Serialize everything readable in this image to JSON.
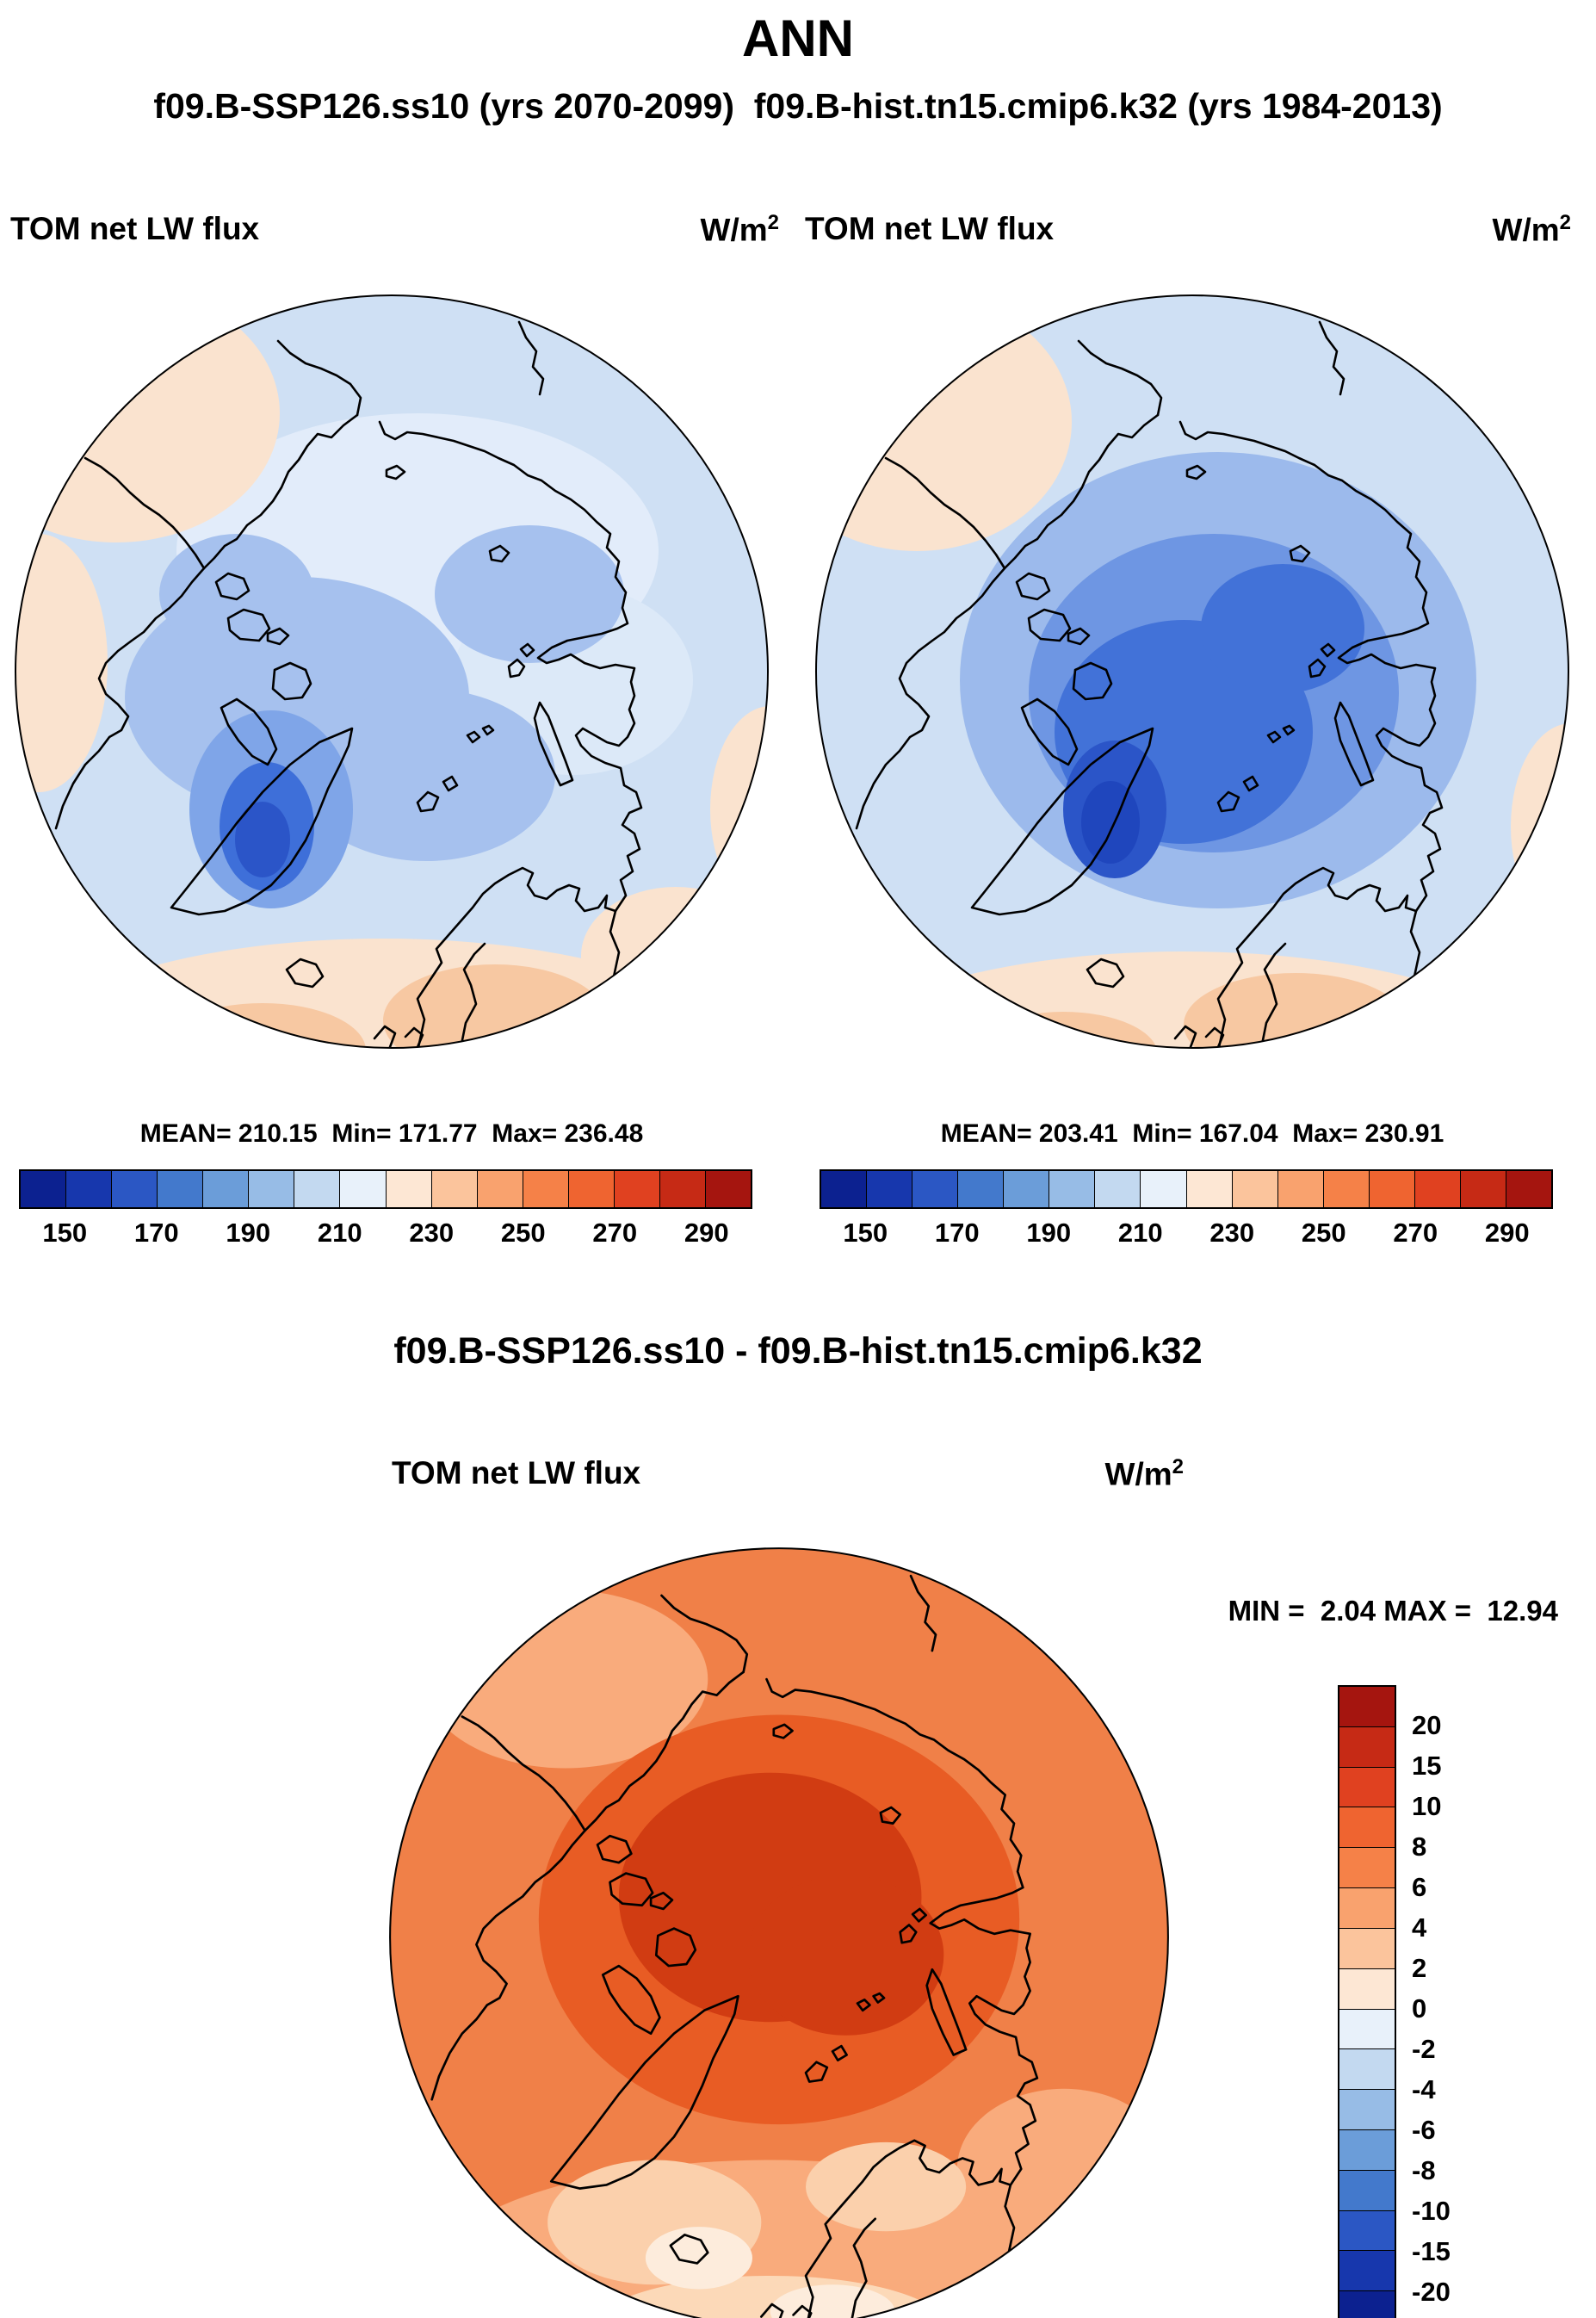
{
  "title": "ANN",
  "subtitle": "f09.B-SSP126.ss10 (yrs 2070-2099)  f09.B-hist.tn15.cmip6.k32 (yrs 1984-2013)",
  "diff_title": "f09.B-SSP126.ss10 - f09.B-hist.tn15.cmip6.k32",
  "panels": {
    "left": {
      "field_label": "TOM net LW flux",
      "units_base": "W/m",
      "units_exp": "2",
      "stats": "MEAN= 210.15  Min= 171.77  Max= 236.48"
    },
    "right": {
      "field_label": "TOM net LW flux",
      "units_base": "W/m",
      "units_exp": "2",
      "stats": "MEAN= 203.41  Min= 167.04  Max= 230.91"
    },
    "diff": {
      "field_label": "TOM net LW flux",
      "units_base": "W/m",
      "units_exp": "2",
      "stats": "MIN =  2.04 MAX =  12.94"
    }
  },
  "colorbar_horizontal": {
    "colors": [
      "#0c2190",
      "#1737ad",
      "#2b57c4",
      "#4379cc",
      "#6b9dd9",
      "#97bce6",
      "#c3d9f0",
      "#e8f1fa",
      "#fde7d4",
      "#fbc49c",
      "#f9a26e",
      "#f58148",
      "#ef6430",
      "#e04120",
      "#c62a15",
      "#a5150f"
    ],
    "tick_labels": [
      "150",
      "170",
      "190",
      "210",
      "230",
      "250",
      "270",
      "290"
    ]
  },
  "colorbar_vertical": {
    "colors": [
      "#a5150f",
      "#c62a15",
      "#e04120",
      "#ef6430",
      "#f58148",
      "#f9a26e",
      "#fbc49c",
      "#fde7d4",
      "#e8f1fa",
      "#c3d9f0",
      "#97bce6",
      "#6b9dd9",
      "#4379cc",
      "#2b57c4",
      "#1737ad",
      "#0c2190"
    ],
    "tick_labels": [
      "20",
      "15",
      "10",
      "8",
      "6",
      "4",
      "2",
      "0",
      "-2",
      "-4",
      "-6",
      "-8",
      "-10",
      "-15",
      "-20"
    ]
  },
  "chart_data": [
    {
      "type": "heatmap",
      "title": "TOM net LW flux",
      "units": "W/m^2",
      "run": "f09.B-SSP126.ss10",
      "years": "2070-2099",
      "season": "ANN",
      "projection": "north-polar-stereographic",
      "mean": 210.15,
      "min": 171.77,
      "max": 236.48,
      "colorbar_ticks": [
        150,
        170,
        190,
        210,
        230,
        250,
        270,
        290
      ],
      "colorbar_range": [
        140,
        300
      ],
      "colorbar_step": 10,
      "legend_position": "bottom"
    },
    {
      "type": "heatmap",
      "title": "TOM net LW flux",
      "units": "W/m^2",
      "run": "f09.B-hist.tn15.cmip6.k32",
      "years": "1984-2013",
      "season": "ANN",
      "projection": "north-polar-stereographic",
      "mean": 203.41,
      "min": 167.04,
      "max": 230.91,
      "colorbar_ticks": [
        150,
        170,
        190,
        210,
        230,
        250,
        270,
        290
      ],
      "colorbar_range": [
        140,
        300
      ],
      "colorbar_step": 10,
      "legend_position": "bottom"
    },
    {
      "type": "heatmap",
      "title": "TOM net LW flux",
      "units": "W/m^2",
      "run": "f09.B-SSP126.ss10 - f09.B-hist.tn15.cmip6.k32",
      "season": "ANN",
      "projection": "north-polar-stereographic",
      "min": 2.04,
      "max": 12.94,
      "colorbar_ticks": [
        20,
        15,
        10,
        8,
        6,
        4,
        2,
        0,
        -2,
        -4,
        -6,
        -8,
        -10,
        -15,
        -20
      ],
      "legend_position": "right"
    }
  ]
}
